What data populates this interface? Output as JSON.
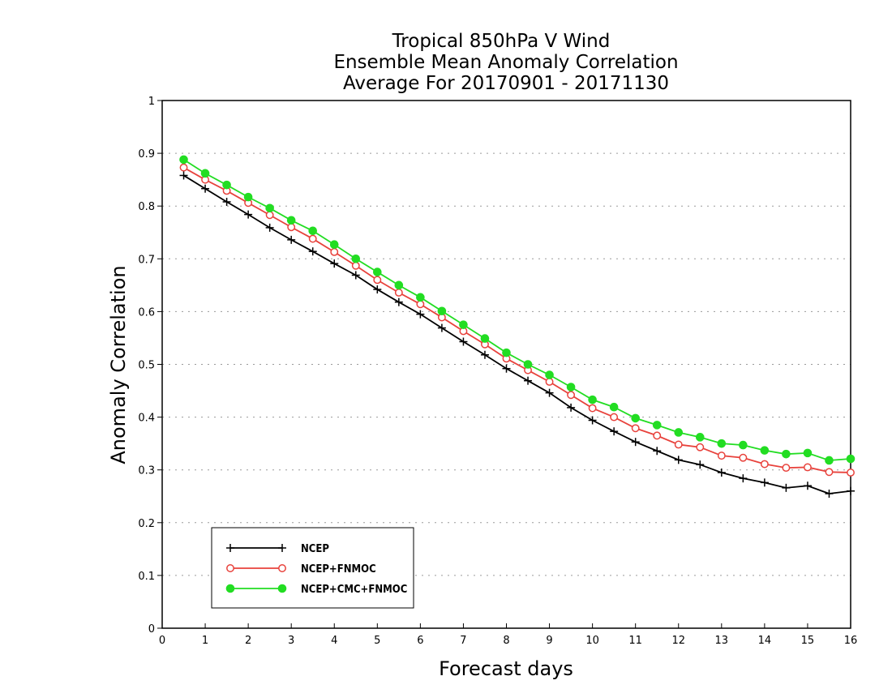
{
  "chart_data": {
    "type": "line",
    "title": [
      "Tropical 850hPa V Wind",
      "Ensemble Mean Anomaly Correlation",
      "Average For 20170901 - 20171130"
    ],
    "xlabel": "Forecast days",
    "ylabel": "Anomaly Correlation",
    "xlim": [
      0,
      16
    ],
    "ylim": [
      0,
      1
    ],
    "xticks": [
      "0",
      "1",
      "2",
      "3",
      "4",
      "5",
      "6",
      "7",
      "8",
      "9",
      "10",
      "11",
      "12",
      "13",
      "14",
      "15",
      "16"
    ],
    "yticks": [
      "0",
      "0.1",
      "0.2",
      "0.3",
      "0.4",
      "0.5",
      "0.6",
      "0.7",
      "0.8",
      "0.9",
      "1"
    ],
    "grid": true,
    "legend_position": "bottom-left",
    "x": [
      0.5,
      1,
      1.5,
      2,
      2.5,
      3,
      3.5,
      4,
      4.5,
      5,
      5.5,
      6,
      6.5,
      7,
      7.5,
      8,
      8.5,
      9,
      9.5,
      10,
      10.5,
      11,
      11.5,
      12,
      12.5,
      13,
      13.5,
      14,
      14.5,
      15,
      15.5,
      16
    ],
    "series": [
      {
        "name": "NCEP",
        "color": "#000000",
        "marker": "plus",
        "values": [
          0.858,
          0.833,
          0.808,
          0.784,
          0.759,
          0.736,
          0.714,
          0.691,
          0.669,
          0.642,
          0.618,
          0.595,
          0.569,
          0.543,
          0.518,
          0.492,
          0.469,
          0.446,
          0.418,
          0.394,
          0.373,
          0.353,
          0.336,
          0.319,
          0.31,
          0.295,
          0.284,
          0.276,
          0.266,
          0.27,
          0.255,
          0.26
        ]
      },
      {
        "name": "NCEP+FNMOC",
        "color": "#e8423c",
        "marker": "open-circle",
        "values": [
          0.873,
          0.85,
          0.829,
          0.806,
          0.783,
          0.76,
          0.738,
          0.713,
          0.687,
          0.66,
          0.636,
          0.614,
          0.589,
          0.563,
          0.538,
          0.511,
          0.489,
          0.467,
          0.442,
          0.417,
          0.4,
          0.379,
          0.365,
          0.348,
          0.343,
          0.327,
          0.323,
          0.311,
          0.304,
          0.305,
          0.296,
          0.295
        ]
      },
      {
        "name": "NCEP+CMC+FNMOC",
        "color": "#22dd22",
        "marker": "filled-circle",
        "values": [
          0.888,
          0.862,
          0.84,
          0.817,
          0.796,
          0.773,
          0.753,
          0.727,
          0.7,
          0.675,
          0.65,
          0.627,
          0.601,
          0.575,
          0.549,
          0.522,
          0.5,
          0.48,
          0.457,
          0.433,
          0.419,
          0.398,
          0.385,
          0.371,
          0.362,
          0.35,
          0.347,
          0.337,
          0.33,
          0.332,
          0.318,
          0.321
        ]
      }
    ]
  }
}
